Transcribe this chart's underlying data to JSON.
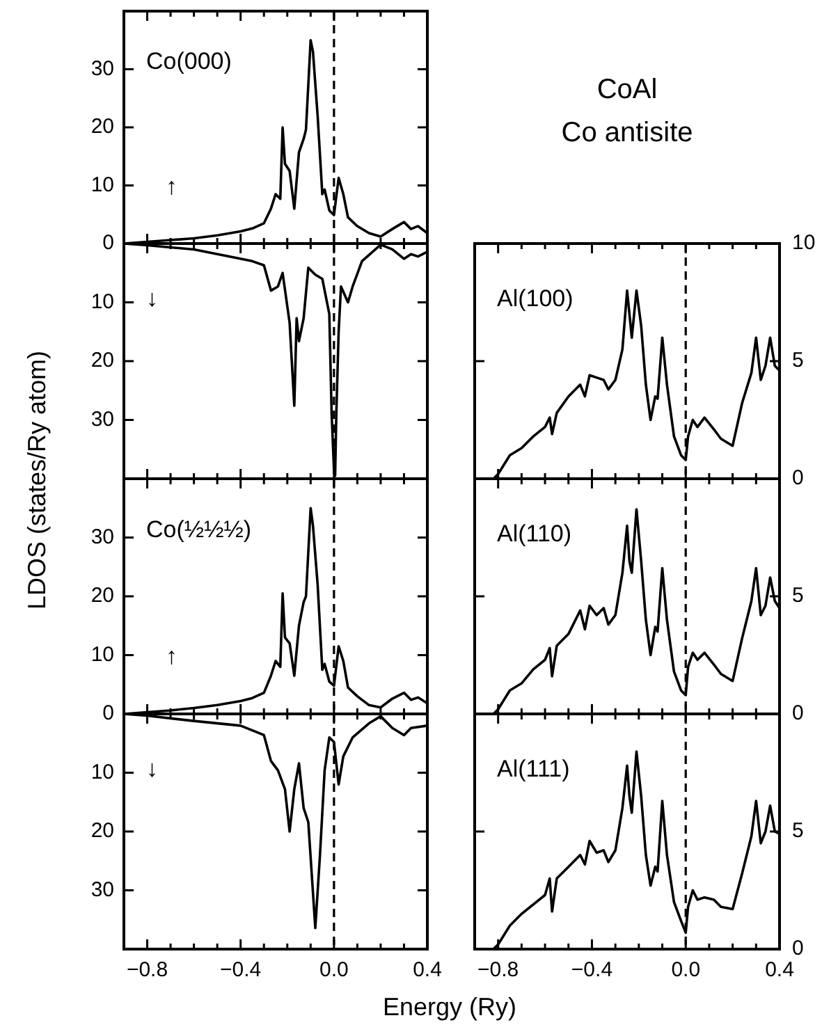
{
  "chart_data": [
    {
      "type": "line",
      "ylabel": "LDOS (states/Ry atom)",
      "annotations": [
        "Co(000)",
        "↑"
      ],
      "tick_labels": "y",
      "xlim": [
        -0.9,
        0.4
      ],
      "xticks": [
        -0.8,
        {
          "value": -0.7,
          "label": null
        },
        {
          "value": -0.6,
          "label": null
        },
        {
          "value": -0.5,
          "label": null
        },
        -0.4,
        {
          "value": -0.3,
          "label": null
        },
        {
          "value": -0.2,
          "label": null
        },
        {
          "value": -0.1,
          "label": null
        },
        0,
        {
          "value": 0.1,
          "label": null
        },
        {
          "value": 0.2,
          "label": null
        },
        {
          "value": 0.3,
          "label": null
        },
        0.4
      ],
      "ylim": [
        0,
        40
      ],
      "yticks": [
        0,
        10,
        20,
        30
      ],
      "ref_lines": [
        {
          "axis": "x",
          "value": 0,
          "line_style": "dashed"
        }
      ],
      "x": [
        -0.9,
        -0.8,
        -0.7,
        -0.6,
        -0.5,
        -0.4,
        -0.35,
        -0.3,
        -0.27,
        -0.25,
        -0.23,
        -0.22,
        -0.21,
        -0.19,
        -0.17,
        -0.15,
        -0.13,
        -0.12,
        -0.1,
        -0.09,
        -0.07,
        -0.05,
        -0.04,
        -0.02,
        0,
        0.02,
        0.04,
        0.06,
        0.1,
        0.15,
        0.2,
        0.25,
        0.3,
        0.33,
        0.36,
        0.4
      ],
      "series": [
        {
          "color": "#000000",
          "values": [
            0,
            0.3,
            0.6,
            0.9,
            1.4,
            2.1,
            2.6,
            3.5,
            6,
            8.5,
            7.7,
            20,
            13.7,
            12.5,
            6,
            15.7,
            18,
            19.6,
            35,
            33,
            22,
            8.5,
            9.3,
            5.7,
            4.9,
            11.3,
            8.5,
            4.5,
            3,
            1.8,
            1.2,
            2.5,
            3.7,
            2.5,
            3,
            1.8
          ]
        }
      ]
    },
    {
      "type": "line",
      "annotations": [
        "↓"
      ],
      "tick_labels": "y",
      "xlim": [
        -0.9,
        0.4
      ],
      "xticks": [
        -0.8,
        {
          "value": -0.7,
          "label": null
        },
        {
          "value": -0.6,
          "label": null
        },
        {
          "value": -0.5,
          "label": null
        },
        -0.4,
        {
          "value": -0.3,
          "label": null
        },
        {
          "value": -0.2,
          "label": null
        },
        {
          "value": -0.1,
          "label": null
        },
        0,
        {
          "value": 0.1,
          "label": null
        },
        {
          "value": 0.2,
          "label": null
        },
        {
          "value": 0.3,
          "label": null
        },
        0.4
      ],
      "ylim": [
        40,
        0
      ],
      "yticks": [
        10,
        20,
        30
      ],
      "ref_lines": [
        {
          "axis": "x",
          "value": 0,
          "line_style": "dashed"
        }
      ],
      "x": [
        -0.9,
        -0.8,
        -0.6,
        -0.45,
        -0.35,
        -0.3,
        -0.27,
        -0.24,
        -0.22,
        -0.19,
        -0.17,
        -0.16,
        -0.15,
        -0.13,
        -0.11,
        -0.08,
        -0.05,
        -0.02,
        -0.01,
        0,
        0.005,
        0.01,
        0.02,
        0.03,
        0.06,
        0.08,
        0.12,
        0.2,
        0.25,
        0.3,
        0.33,
        0.36,
        0.4
      ],
      "series": [
        {
          "color": "#000000",
          "values": [
            0,
            0.3,
            1,
            2.2,
            3,
            3.7,
            8,
            7.3,
            5,
            13.5,
            27.6,
            12.7,
            16.6,
            12.7,
            4.1,
            5.3,
            6,
            12,
            29,
            38.5,
            39.5,
            29,
            15,
            7.3,
            10,
            7.3,
            3,
            0.2,
            1,
            2.6,
            1.8,
            2.2,
            1.4
          ]
        }
      ]
    },
    {
      "type": "line",
      "annotations": [
        "Co(½½½)",
        "↑"
      ],
      "tick_labels": "y",
      "xlim": [
        -0.9,
        0.4
      ],
      "xticks": [
        -0.8,
        {
          "value": -0.7,
          "label": null
        },
        {
          "value": -0.6,
          "label": null
        },
        {
          "value": -0.5,
          "label": null
        },
        -0.4,
        {
          "value": -0.3,
          "label": null
        },
        {
          "value": -0.2,
          "label": null
        },
        {
          "value": -0.1,
          "label": null
        },
        0,
        {
          "value": 0.1,
          "label": null
        },
        {
          "value": 0.2,
          "label": null
        },
        {
          "value": 0.3,
          "label": null
        },
        0.4
      ],
      "ylim": [
        0,
        40
      ],
      "yticks": [
        0,
        10,
        20,
        30
      ],
      "ref_lines": [
        {
          "axis": "x",
          "value": 0,
          "line_style": "dashed"
        }
      ],
      "x": [
        -0.9,
        -0.8,
        -0.7,
        -0.6,
        -0.5,
        -0.4,
        -0.35,
        -0.3,
        -0.27,
        -0.25,
        -0.23,
        -0.22,
        -0.21,
        -0.19,
        -0.17,
        -0.15,
        -0.13,
        -0.12,
        -0.1,
        -0.09,
        -0.07,
        -0.05,
        -0.04,
        -0.02,
        0,
        0.02,
        0.04,
        0.06,
        0.1,
        0.15,
        0.2,
        0.25,
        0.3,
        0.33,
        0.36,
        0.4
      ],
      "series": [
        {
          "color": "#000000",
          "values": [
            0,
            0.3,
            0.6,
            1,
            1.5,
            2.2,
            2.7,
            3.6,
            6.5,
            9,
            8,
            20.5,
            13,
            12,
            6.5,
            15,
            19,
            20,
            35,
            32,
            22,
            7.5,
            8.5,
            5.5,
            4.8,
            11.5,
            9,
            4.5,
            3,
            1.5,
            1.1,
            2.6,
            3.6,
            2.4,
            2.8,
            1.8
          ]
        }
      ]
    },
    {
      "type": "line",
      "xlabel": "Energy (Ry)",
      "annotations": [
        "↓"
      ],
      "xlim": [
        -0.9,
        0.4
      ],
      "xticks": [
        {
          "value": -0.8,
          "label": "−0.8"
        },
        {
          "value": -0.7,
          "label": null
        },
        {
          "value": -0.6,
          "label": null
        },
        {
          "value": -0.5,
          "label": null
        },
        {
          "value": -0.4,
          "label": "−0.4"
        },
        {
          "value": -0.3,
          "label": null
        },
        {
          "value": -0.2,
          "label": null
        },
        {
          "value": -0.1,
          "label": null
        },
        {
          "value": 0,
          "label": "0.0"
        },
        {
          "value": 0.1,
          "label": null
        },
        {
          "value": 0.2,
          "label": null
        },
        {
          "value": 0.3,
          "label": null
        },
        {
          "value": 0.4,
          "label": "0.4"
        }
      ],
      "ylim": [
        40,
        0
      ],
      "yticks": [
        10,
        20,
        30
      ],
      "ref_lines": [
        {
          "axis": "x",
          "value": 0,
          "line_style": "dashed"
        }
      ],
      "x": [
        -0.9,
        -0.8,
        -0.6,
        -0.4,
        -0.3,
        -0.27,
        -0.24,
        -0.21,
        -0.19,
        -0.17,
        -0.15,
        -0.13,
        -0.11,
        -0.09,
        -0.08,
        -0.06,
        -0.04,
        -0.02,
        0,
        0.02,
        0.04,
        0.08,
        0.15,
        0.2,
        0.25,
        0.3,
        0.33,
        0.4
      ],
      "series": [
        {
          "color": "#000000",
          "values": [
            0,
            0.3,
            1.2,
            2,
            3.6,
            8,
            9.6,
            12.8,
            20,
            12.8,
            8.4,
            16,
            18.4,
            30.4,
            36.4,
            24,
            9.6,
            4,
            4.8,
            12,
            7.2,
            4,
            1.6,
            0.4,
            2.4,
            3.6,
            2.4,
            2
          ]
        }
      ]
    },
    {
      "type": "line",
      "title": "CoAl",
      "subtitle": "Co antisite",
      "annotations": [
        "Al(100)"
      ],
      "tick_labels": "y",
      "xlim": [
        -0.9,
        0.4
      ],
      "xticks": [
        -0.8,
        {
          "value": -0.7,
          "label": null
        },
        {
          "value": -0.6,
          "label": null
        },
        {
          "value": -0.5,
          "label": null
        },
        -0.4,
        {
          "value": -0.3,
          "label": null
        },
        {
          "value": -0.2,
          "label": null
        },
        {
          "value": -0.1,
          "label": null
        },
        0,
        {
          "value": 0.1,
          "label": null
        },
        {
          "value": 0.2,
          "label": null
        },
        {
          "value": 0.3,
          "label": null
        },
        0.4
      ],
      "ylim": [
        0,
        10
      ],
      "yticks": [
        0,
        5,
        10
      ],
      "ref_lines": [
        {
          "axis": "x",
          "value": 0,
          "line_style": "dashed"
        }
      ],
      "x": [
        -0.9,
        -0.82,
        -0.8,
        -0.75,
        -0.7,
        -0.65,
        -0.6,
        -0.58,
        -0.57,
        -0.55,
        -0.5,
        -0.45,
        -0.43,
        -0.41,
        -0.38,
        -0.35,
        -0.33,
        -0.3,
        -0.27,
        -0.25,
        -0.24,
        -0.23,
        -0.21,
        -0.19,
        -0.17,
        -0.15,
        -0.13,
        -0.12,
        -0.1,
        -0.08,
        -0.05,
        -0.02,
        0,
        0.01,
        0.03,
        0.05,
        0.08,
        0.12,
        0.15,
        0.2,
        0.24,
        0.28,
        0.3,
        0.32,
        0.34,
        0.36,
        0.38,
        0.4
      ],
      "series": [
        {
          "color": "#000000",
          "values": [
            0,
            0,
            0.2,
            1,
            1.3,
            1.8,
            2.2,
            2.6,
            1.9,
            2.8,
            3.5,
            4,
            3.5,
            4.4,
            4.3,
            4.2,
            3.8,
            4.2,
            5.5,
            8,
            7,
            6,
            8,
            6.5,
            4,
            2.5,
            3.5,
            3.4,
            6,
            4,
            1.8,
            1,
            0.8,
            1.8,
            2.5,
            2.2,
            2.6,
            2.1,
            1.7,
            1.4,
            3.2,
            4.5,
            6,
            4.2,
            4.8,
            6,
            4.8,
            4.6
          ]
        }
      ]
    },
    {
      "type": "line",
      "annotations": [
        "Al(110)"
      ],
      "tick_labels": "y",
      "xlim": [
        -0.9,
        0.4
      ],
      "xticks": [
        -0.8,
        {
          "value": -0.7,
          "label": null
        },
        {
          "value": -0.6,
          "label": null
        },
        {
          "value": -0.5,
          "label": null
        },
        -0.4,
        {
          "value": -0.3,
          "label": null
        },
        {
          "value": -0.2,
          "label": null
        },
        {
          "value": -0.1,
          "label": null
        },
        0,
        {
          "value": 0.1,
          "label": null
        },
        {
          "value": 0.2,
          "label": null
        },
        {
          "value": 0.3,
          "label": null
        },
        0.4
      ],
      "ylim": [
        0,
        10
      ],
      "yticks": [
        0,
        5
      ],
      "ref_lines": [
        {
          "axis": "x",
          "value": 0,
          "line_style": "dashed"
        }
      ],
      "x": [
        -0.9,
        -0.82,
        -0.8,
        -0.75,
        -0.7,
        -0.65,
        -0.6,
        -0.58,
        -0.57,
        -0.55,
        -0.5,
        -0.45,
        -0.43,
        -0.41,
        -0.38,
        -0.35,
        -0.33,
        -0.3,
        -0.27,
        -0.25,
        -0.24,
        -0.23,
        -0.21,
        -0.19,
        -0.17,
        -0.15,
        -0.13,
        -0.12,
        -0.1,
        -0.08,
        -0.05,
        -0.02,
        0,
        0.01,
        0.03,
        0.05,
        0.08,
        0.12,
        0.15,
        0.2,
        0.24,
        0.28,
        0.3,
        0.32,
        0.34,
        0.36,
        0.38,
        0.4
      ],
      "series": [
        {
          "color": "#000000",
          "values": [
            0,
            0,
            0.2,
            1,
            1.3,
            1.9,
            2.3,
            2.8,
            1.6,
            2.9,
            3.4,
            4.4,
            3.6,
            4.6,
            4.2,
            4.5,
            3.8,
            4.2,
            6,
            8,
            6.5,
            6,
            8.7,
            6.5,
            4,
            2.5,
            3.7,
            3.5,
            6.2,
            4,
            1.8,
            1,
            0.8,
            2,
            2.6,
            2.3,
            2.6,
            2.1,
            1.7,
            1.4,
            3.2,
            4.8,
            6.2,
            4.2,
            4.6,
            5.8,
            4.8,
            4.5
          ]
        }
      ]
    },
    {
      "type": "line",
      "annotations": [
        "Al(111)"
      ],
      "xlim": [
        -0.9,
        0.4
      ],
      "xticks": [
        {
          "value": -0.8,
          "label": "−0.8"
        },
        {
          "value": -0.7,
          "label": null
        },
        {
          "value": -0.6,
          "label": null
        },
        {
          "value": -0.5,
          "label": null
        },
        {
          "value": -0.4,
          "label": "−0.4"
        },
        {
          "value": -0.3,
          "label": null
        },
        {
          "value": -0.2,
          "label": null
        },
        {
          "value": -0.1,
          "label": null
        },
        {
          "value": 0,
          "label": "0.0"
        },
        {
          "value": 0.1,
          "label": null
        },
        {
          "value": 0.2,
          "label": null
        },
        {
          "value": 0.3,
          "label": null
        },
        {
          "value": 0.4,
          "label": "0.4"
        }
      ],
      "ylim": [
        0,
        10
      ],
      "yticks": [
        0,
        5
      ],
      "ref_lines": [
        {
          "axis": "x",
          "value": 0,
          "line_style": "dashed"
        }
      ],
      "x": [
        -0.9,
        -0.82,
        -0.8,
        -0.75,
        -0.7,
        -0.65,
        -0.6,
        -0.58,
        -0.57,
        -0.55,
        -0.5,
        -0.45,
        -0.43,
        -0.41,
        -0.38,
        -0.35,
        -0.33,
        -0.3,
        -0.27,
        -0.25,
        -0.24,
        -0.23,
        -0.21,
        -0.19,
        -0.17,
        -0.15,
        -0.13,
        -0.12,
        -0.1,
        -0.08,
        -0.05,
        -0.02,
        0,
        0.01,
        0.03,
        0.05,
        0.08,
        0.12,
        0.15,
        0.2,
        0.24,
        0.28,
        0.3,
        0.32,
        0.34,
        0.36,
        0.38,
        0.4
      ],
      "series": [
        {
          "color": "#000000",
          "values": [
            0,
            0,
            0.2,
            1,
            1.5,
            1.9,
            2.3,
            3,
            1.6,
            3,
            3.5,
            4,
            3.6,
            4.6,
            4.1,
            4.2,
            3.7,
            4.2,
            6,
            7.8,
            6.5,
            5.8,
            8.4,
            6.5,
            4,
            2.7,
            3.5,
            3.3,
            6.3,
            4,
            2,
            1.2,
            0.7,
            1.8,
            2.5,
            2.1,
            2.2,
            2.1,
            1.8,
            1.7,
            3.2,
            4.8,
            6.3,
            4.5,
            5,
            6.1,
            5,
            4.9
          ]
        }
      ]
    }
  ]
}
